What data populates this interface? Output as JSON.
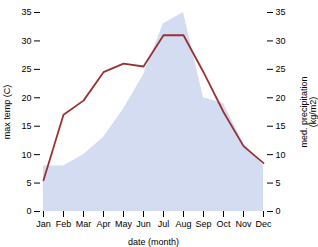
{
  "chart_data": {
    "type": "line",
    "categories": [
      "Jan",
      "Feb",
      "Mar",
      "Apr",
      "May",
      "Jun",
      "Jul",
      "Aug",
      "Sep",
      "Oct",
      "Nov",
      "Dec"
    ],
    "xlabel": "date (month)",
    "ylabel": "max temp (C)",
    "y2label": "med. precipitation\n(kg/m2)",
    "ylim": [
      0,
      35
    ],
    "yticks": [
      0,
      5,
      10,
      15,
      20,
      25,
      30,
      35
    ],
    "y2lim": [
      0,
      35
    ],
    "y2ticks": [
      0,
      5,
      10,
      15,
      20,
      25,
      30,
      35
    ],
    "grid": false,
    "series": [
      {
        "name": "max temp (C)",
        "type": "line",
        "color": "#993333",
        "values": [
          5.5,
          17.0,
          19.5,
          24.5,
          26.0,
          25.5,
          31.0,
          31.0,
          24.5,
          17.5,
          11.5,
          8.5
        ]
      },
      {
        "name": "med. precipitation\n(kg/m2)",
        "type": "area",
        "axis": "y2",
        "color": "#b8c4e8",
        "values": [
          8,
          8,
          10,
          13,
          18,
          24,
          33,
          35,
          20,
          19,
          12,
          8
        ]
      }
    ]
  }
}
